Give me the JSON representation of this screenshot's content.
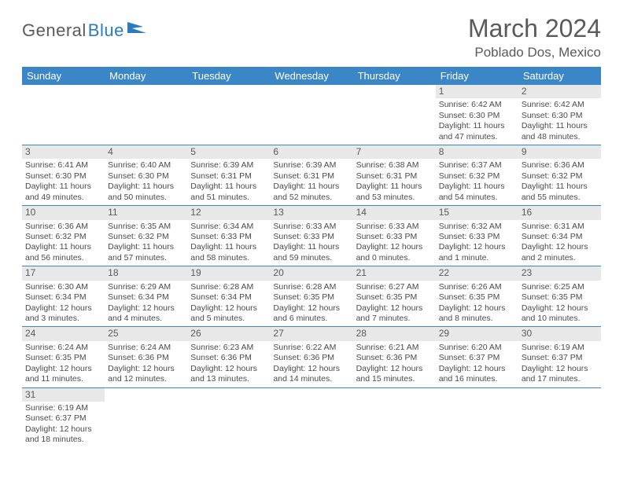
{
  "logo": {
    "general": "General",
    "blue": "Blue"
  },
  "title": "March 2024",
  "subtitle": "Poblado Dos, Mexico",
  "dayHeaders": [
    "Sunday",
    "Monday",
    "Tuesday",
    "Wednesday",
    "Thursday",
    "Friday",
    "Saturday"
  ],
  "colors": {
    "headerBg": "#3b86c6",
    "headerText": "#ffffff",
    "textGray": "#5a5a5a",
    "logoBlue": "#2b7bbf",
    "dayNumBg": "#e8e8e8",
    "borderBlue": "#3b86c6"
  },
  "weeks": [
    [
      null,
      null,
      null,
      null,
      null,
      {
        "n": "1",
        "sr": "Sunrise: 6:42 AM",
        "ss": "Sunset: 6:30 PM",
        "d1": "Daylight: 11 hours",
        "d2": "and 47 minutes."
      },
      {
        "n": "2",
        "sr": "Sunrise: 6:42 AM",
        "ss": "Sunset: 6:30 PM",
        "d1": "Daylight: 11 hours",
        "d2": "and 48 minutes."
      }
    ],
    [
      {
        "n": "3",
        "sr": "Sunrise: 6:41 AM",
        "ss": "Sunset: 6:30 PM",
        "d1": "Daylight: 11 hours",
        "d2": "and 49 minutes."
      },
      {
        "n": "4",
        "sr": "Sunrise: 6:40 AM",
        "ss": "Sunset: 6:30 PM",
        "d1": "Daylight: 11 hours",
        "d2": "and 50 minutes."
      },
      {
        "n": "5",
        "sr": "Sunrise: 6:39 AM",
        "ss": "Sunset: 6:31 PM",
        "d1": "Daylight: 11 hours",
        "d2": "and 51 minutes."
      },
      {
        "n": "6",
        "sr": "Sunrise: 6:39 AM",
        "ss": "Sunset: 6:31 PM",
        "d1": "Daylight: 11 hours",
        "d2": "and 52 minutes."
      },
      {
        "n": "7",
        "sr": "Sunrise: 6:38 AM",
        "ss": "Sunset: 6:31 PM",
        "d1": "Daylight: 11 hours",
        "d2": "and 53 minutes."
      },
      {
        "n": "8",
        "sr": "Sunrise: 6:37 AM",
        "ss": "Sunset: 6:32 PM",
        "d1": "Daylight: 11 hours",
        "d2": "and 54 minutes."
      },
      {
        "n": "9",
        "sr": "Sunrise: 6:36 AM",
        "ss": "Sunset: 6:32 PM",
        "d1": "Daylight: 11 hours",
        "d2": "and 55 minutes."
      }
    ],
    [
      {
        "n": "10",
        "sr": "Sunrise: 6:36 AM",
        "ss": "Sunset: 6:32 PM",
        "d1": "Daylight: 11 hours",
        "d2": "and 56 minutes."
      },
      {
        "n": "11",
        "sr": "Sunrise: 6:35 AM",
        "ss": "Sunset: 6:32 PM",
        "d1": "Daylight: 11 hours",
        "d2": "and 57 minutes."
      },
      {
        "n": "12",
        "sr": "Sunrise: 6:34 AM",
        "ss": "Sunset: 6:33 PM",
        "d1": "Daylight: 11 hours",
        "d2": "and 58 minutes."
      },
      {
        "n": "13",
        "sr": "Sunrise: 6:33 AM",
        "ss": "Sunset: 6:33 PM",
        "d1": "Daylight: 11 hours",
        "d2": "and 59 minutes."
      },
      {
        "n": "14",
        "sr": "Sunrise: 6:33 AM",
        "ss": "Sunset: 6:33 PM",
        "d1": "Daylight: 12 hours",
        "d2": "and 0 minutes."
      },
      {
        "n": "15",
        "sr": "Sunrise: 6:32 AM",
        "ss": "Sunset: 6:33 PM",
        "d1": "Daylight: 12 hours",
        "d2": "and 1 minute."
      },
      {
        "n": "16",
        "sr": "Sunrise: 6:31 AM",
        "ss": "Sunset: 6:34 PM",
        "d1": "Daylight: 12 hours",
        "d2": "and 2 minutes."
      }
    ],
    [
      {
        "n": "17",
        "sr": "Sunrise: 6:30 AM",
        "ss": "Sunset: 6:34 PM",
        "d1": "Daylight: 12 hours",
        "d2": "and 3 minutes."
      },
      {
        "n": "18",
        "sr": "Sunrise: 6:29 AM",
        "ss": "Sunset: 6:34 PM",
        "d1": "Daylight: 12 hours",
        "d2": "and 4 minutes."
      },
      {
        "n": "19",
        "sr": "Sunrise: 6:28 AM",
        "ss": "Sunset: 6:34 PM",
        "d1": "Daylight: 12 hours",
        "d2": "and 5 minutes."
      },
      {
        "n": "20",
        "sr": "Sunrise: 6:28 AM",
        "ss": "Sunset: 6:35 PM",
        "d1": "Daylight: 12 hours",
        "d2": "and 6 minutes."
      },
      {
        "n": "21",
        "sr": "Sunrise: 6:27 AM",
        "ss": "Sunset: 6:35 PM",
        "d1": "Daylight: 12 hours",
        "d2": "and 7 minutes."
      },
      {
        "n": "22",
        "sr": "Sunrise: 6:26 AM",
        "ss": "Sunset: 6:35 PM",
        "d1": "Daylight: 12 hours",
        "d2": "and 8 minutes."
      },
      {
        "n": "23",
        "sr": "Sunrise: 6:25 AM",
        "ss": "Sunset: 6:35 PM",
        "d1": "Daylight: 12 hours",
        "d2": "and 10 minutes."
      }
    ],
    [
      {
        "n": "24",
        "sr": "Sunrise: 6:24 AM",
        "ss": "Sunset: 6:35 PM",
        "d1": "Daylight: 12 hours",
        "d2": "and 11 minutes."
      },
      {
        "n": "25",
        "sr": "Sunrise: 6:24 AM",
        "ss": "Sunset: 6:36 PM",
        "d1": "Daylight: 12 hours",
        "d2": "and 12 minutes."
      },
      {
        "n": "26",
        "sr": "Sunrise: 6:23 AM",
        "ss": "Sunset: 6:36 PM",
        "d1": "Daylight: 12 hours",
        "d2": "and 13 minutes."
      },
      {
        "n": "27",
        "sr": "Sunrise: 6:22 AM",
        "ss": "Sunset: 6:36 PM",
        "d1": "Daylight: 12 hours",
        "d2": "and 14 minutes."
      },
      {
        "n": "28",
        "sr": "Sunrise: 6:21 AM",
        "ss": "Sunset: 6:36 PM",
        "d1": "Daylight: 12 hours",
        "d2": "and 15 minutes."
      },
      {
        "n": "29",
        "sr": "Sunrise: 6:20 AM",
        "ss": "Sunset: 6:37 PM",
        "d1": "Daylight: 12 hours",
        "d2": "and 16 minutes."
      },
      {
        "n": "30",
        "sr": "Sunrise: 6:19 AM",
        "ss": "Sunset: 6:37 PM",
        "d1": "Daylight: 12 hours",
        "d2": "and 17 minutes."
      }
    ],
    [
      {
        "n": "31",
        "sr": "Sunrise: 6:19 AM",
        "ss": "Sunset: 6:37 PM",
        "d1": "Daylight: 12 hours",
        "d2": "and 18 minutes."
      },
      null,
      null,
      null,
      null,
      null,
      null
    ]
  ]
}
